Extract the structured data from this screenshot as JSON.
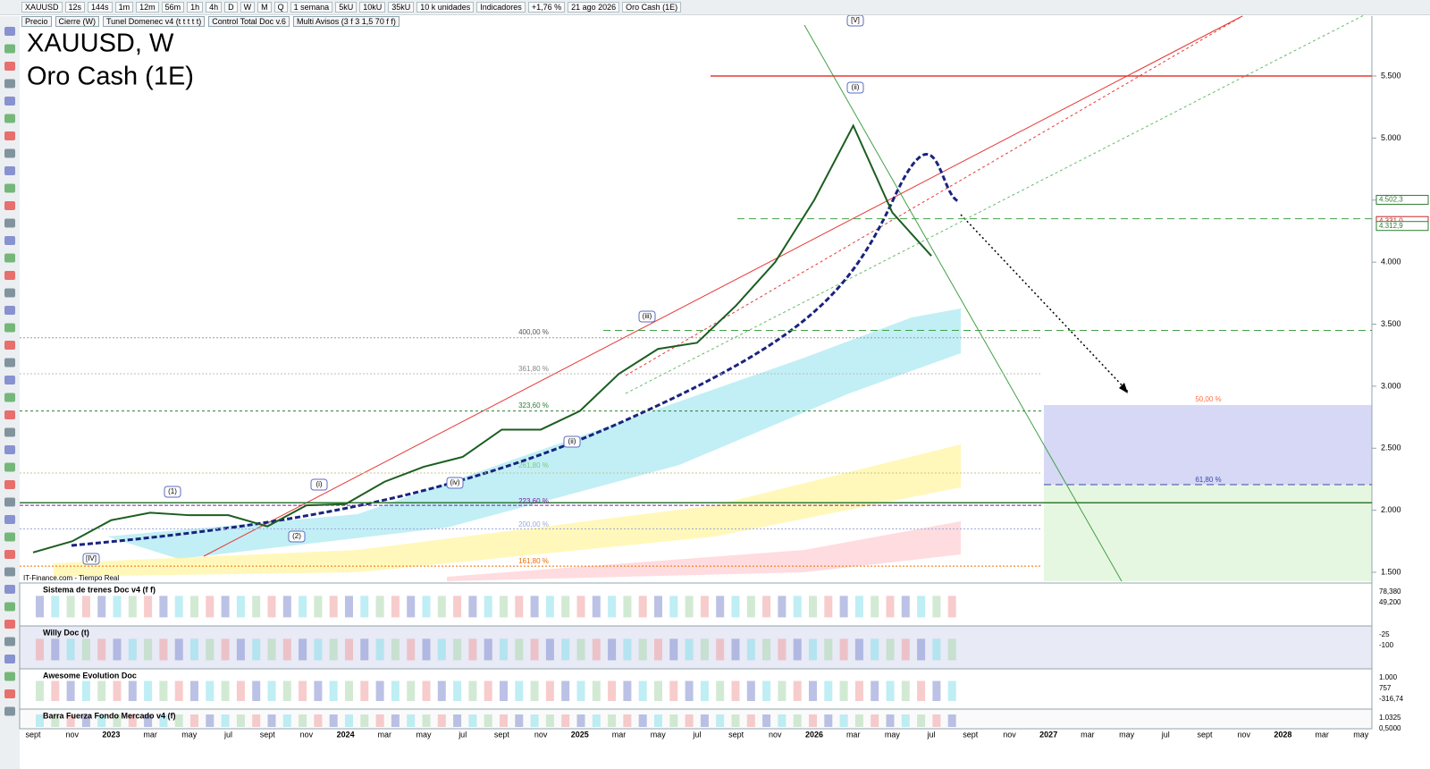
{
  "toolbar": [
    "XAUUSD",
    "12s",
    "144s",
    "1m",
    "12m",
    "56m",
    "1h",
    "4h",
    "D",
    "W",
    "M",
    "Q",
    "1 semana",
    "5kU",
    "10kU",
    "35kU",
    "10 k unidades",
    "Indicadores",
    "+1,76 %",
    "21 ago 2026",
    "Oro Cash (1E)"
  ],
  "indicators": [
    "Precio",
    "Cierre (W)",
    "Tunel Domenec v4 (t t t t t)",
    "Control Total Doc v.6",
    "Multi Avisos (3 f 3 1,5 70 f f)"
  ],
  "header": {
    "title": "XAUUSD, W",
    "subtitle": "Oro Cash (1E)"
  },
  "source": "IT-Finance.com - Tiempo Real",
  "chart_data": {
    "type": "line",
    "categories": [
      "sept",
      "nov",
      "2023",
      "mar",
      "may",
      "jul",
      "sept",
      "nov",
      "2024",
      "mar",
      "may",
      "jul",
      "sept",
      "nov",
      "2025",
      "mar",
      "may",
      "jul",
      "sept",
      "nov",
      "2026",
      "mar",
      "may",
      "jul",
      "sept",
      "nov",
      "2027",
      "mar",
      "may",
      "jul",
      "sept",
      "nov",
      "2028",
      "mar",
      "may"
    ],
    "values": [
      1660,
      1750,
      1920,
      1980,
      1960,
      1960,
      1870,
      2040,
      2050,
      2230,
      2350,
      2430,
      2650,
      2650,
      2800,
      3100,
      3300,
      3350,
      3650,
      4000,
      4500,
      5100,
      4400,
      4050,
      null,
      null,
      null,
      null,
      null,
      null,
      null,
      null,
      null,
      null,
      null
    ],
    "color": "#1b5e20",
    "ylim": [
      1428,
      5983
    ],
    "yticks": [
      {
        "value": 1500,
        "label": "1.500"
      },
      {
        "value": 2000,
        "label": "2.000"
      },
      {
        "value": 2500,
        "label": "2.500"
      },
      {
        "value": 3000,
        "label": "3.000"
      },
      {
        "value": 3500,
        "label": "3.500"
      },
      {
        "value": 4000,
        "label": "4.000"
      },
      {
        "value": 4500,
        "label": "4.500"
      },
      {
        "value": 5000,
        "label": "5.000"
      },
      {
        "value": 5500,
        "label": "5.500"
      }
    ],
    "price_labels": [
      {
        "value": 4502.3,
        "label": "4.502,3",
        "color": "#2e7d32"
      },
      {
        "value": 4331.0,
        "label": "4.331,0",
        "color": "#c62828"
      },
      {
        "value": 4312.9,
        "label": "4.312,9",
        "color": "#2e7d32"
      }
    ],
    "levels": [
      {
        "value": 5500,
        "color": "#e53935"
      },
      {
        "value": 4350,
        "color": "#43a047"
      },
      {
        "value": 3450,
        "color": "#43a047"
      },
      {
        "value": 3390,
        "color": "#9e9e9e"
      },
      {
        "value": 3100,
        "color": "#bdbdbd"
      },
      {
        "value": 2800,
        "color": "#2e7d32"
      },
      {
        "value": 2300,
        "color": "#c5c58a"
      },
      {
        "value": 2206,
        "color": "#3949ab"
      },
      {
        "value": 2060,
        "color": "#2e7d32"
      },
      {
        "value": 2040,
        "color": "#7b1fa2"
      },
      {
        "value": 1850,
        "color": "#9fa8da"
      },
      {
        "value": 1550,
        "color": "#ef6c00"
      }
    ],
    "fib_labels": [
      "400,00 %",
      "361,80 %",
      "323,60 %",
      "261,80 %",
      "223,60 %",
      "200,00 %",
      "161,80 %",
      "50,00 %",
      "61,80 %"
    ],
    "wave_labels": [
      "(1)",
      "(2)",
      "[IV]",
      "(i)",
      "(ii)",
      "(iii)",
      "(iv)",
      "[V]",
      "(ii)"
    ]
  },
  "panels": [
    {
      "title": "Sistema de trenes Doc v4 (f f)",
      "scale": [
        "78,380",
        "49,200"
      ]
    },
    {
      "title": "Willy Doc (t)",
      "scale": [
        "-25",
        "-100"
      ]
    },
    {
      "title": "Awesome Evolution Doc",
      "scale": [
        "1.000",
        "757",
        "-316,74"
      ]
    },
    {
      "title": "Barra Fuerza Fondo Mercado v4 (f)",
      "scale": [
        "1.0325",
        "0,5000"
      ]
    }
  ]
}
